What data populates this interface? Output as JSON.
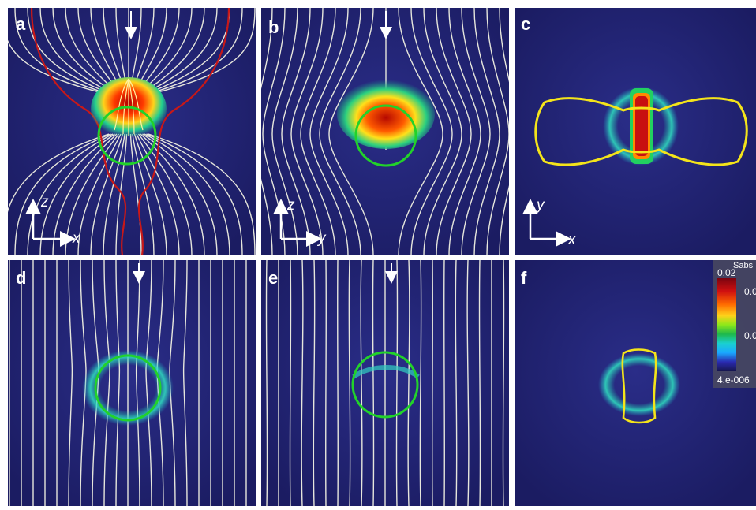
{
  "panels": [
    {
      "id": "a",
      "label": "a",
      "axes": {
        "vertical": "z",
        "horizontal": "x"
      }
    },
    {
      "id": "b",
      "label": "b",
      "axes": {
        "vertical": "z",
        "horizontal": "y"
      }
    },
    {
      "id": "c",
      "label": "c",
      "axes": {
        "vertical": "y",
        "horizontal": "x"
      }
    },
    {
      "id": "d",
      "label": "d"
    },
    {
      "id": "e",
      "label": "e"
    },
    {
      "id": "f",
      "label": "f"
    }
  ],
  "colorbar": {
    "title": "Sabs",
    "max_label": "0.02",
    "min_label": "4.e-006",
    "tick_1": "0.0",
    "tick_2": "0.0",
    "colors": [
      "#7a0410",
      "#d01010",
      "#ff6a00",
      "#ffd21a",
      "#8ee81a",
      "#1fb84a",
      "#1ad0d0",
      "#1aa8ff",
      "#2a2ab0",
      "#161650"
    ]
  },
  "colors": {
    "background": "#1c1d66",
    "streamline": "#e6e6dc",
    "particle_outline_green": "#22d22a",
    "field_line_red": "#c81818",
    "contour_yellow": "#f4e41a"
  }
}
